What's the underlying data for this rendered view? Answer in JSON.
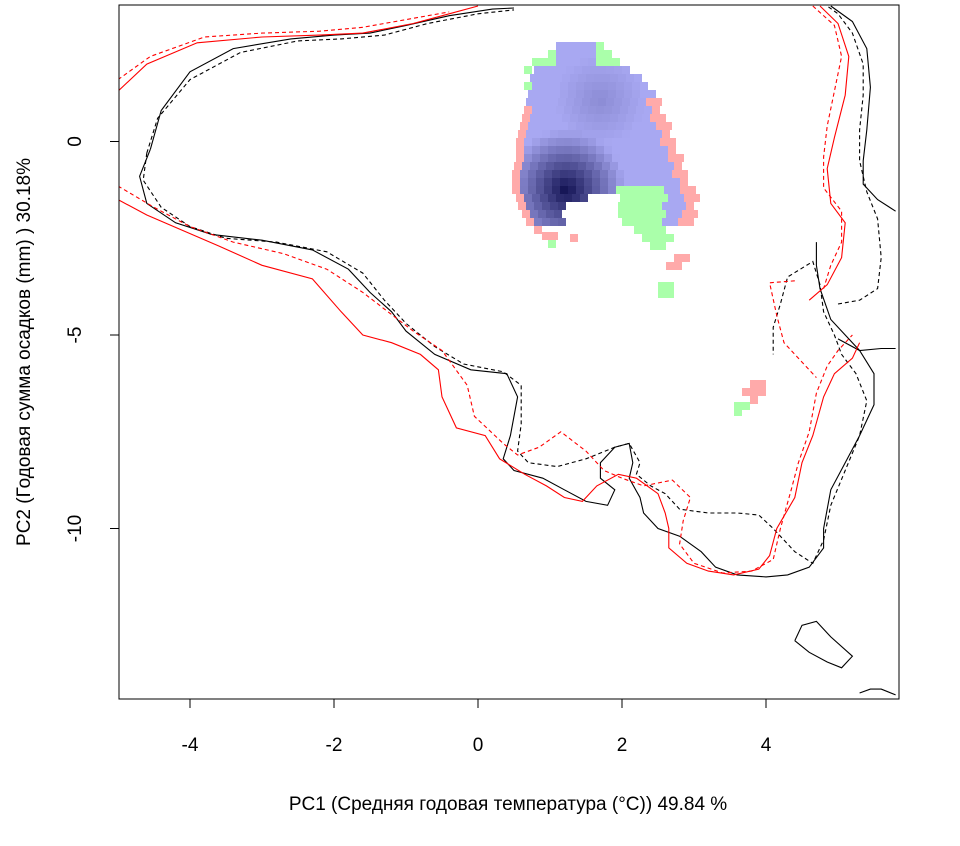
{
  "chart_data": {
    "type": "heatmap",
    "xlabel": "PC1 (Средняя годовая температура (°C)) 49.84 %",
    "ylabel": "PC2 (Годовая сумма осадков  (mm) ) 30.18%",
    "xlim": [
      -5.0,
      5.8
    ],
    "ylim": [
      -14.4,
      3.5
    ],
    "x_ticks": [
      -4,
      -2,
      0,
      2,
      4
    ],
    "y_ticks": [
      0,
      -5,
      -10
    ],
    "x_tick_labels": [
      "-4",
      "-2",
      "0",
      "2",
      "4"
    ],
    "y_tick_labels": [
      "0",
      "-5",
      "-10"
    ],
    "grid": false,
    "colors": {
      "overlap_ramp_light": "#a8a8f2",
      "overlap_ramp_dark": "#0a0a4a",
      "only_red_cells": "#ffaaaa",
      "only_green_cells": "#aaffaa",
      "contour_black": "#000000",
      "contour_red": "#ff0000"
    },
    "density_peak": [
      1.22,
      -1.25
    ],
    "contours": [
      {
        "color": "#000000",
        "style": "solid",
        "points": [
          [
            -4.55,
            -0.2
          ],
          [
            -4.4,
            0.8
          ],
          [
            -4.0,
            1.8
          ],
          [
            -3.4,
            2.4
          ],
          [
            -2.6,
            2.65
          ],
          [
            -2.0,
            2.75
          ],
          [
            -1.5,
            2.8
          ],
          [
            -1.0,
            3.0
          ],
          [
            -0.4,
            3.25
          ],
          [
            0.2,
            3.42
          ],
          [
            0.5,
            3.45
          ]
        ]
      },
      {
        "color": "#000000",
        "style": "solid",
        "points": [
          [
            -4.55,
            -0.2
          ],
          [
            -4.7,
            -0.9
          ],
          [
            -4.6,
            -1.6
          ],
          [
            -4.2,
            -2.1
          ],
          [
            -3.7,
            -2.4
          ],
          [
            -3.0,
            -2.55
          ],
          [
            -2.3,
            -2.8
          ],
          [
            -1.8,
            -3.3
          ],
          [
            -1.5,
            -3.9
          ],
          [
            -1.2,
            -4.4
          ],
          [
            -1.0,
            -4.9
          ],
          [
            -0.6,
            -5.5
          ],
          [
            -0.1,
            -5.9
          ],
          [
            0.4,
            -6.0
          ],
          [
            0.55,
            -6.6
          ],
          [
            0.45,
            -7.6
          ],
          [
            0.35,
            -8.2
          ],
          [
            0.5,
            -8.5
          ],
          [
            0.9,
            -8.7
          ],
          [
            1.2,
            -9.0
          ],
          [
            1.5,
            -9.3
          ],
          [
            1.8,
            -9.4
          ],
          [
            1.9,
            -9.0
          ],
          [
            1.7,
            -8.7
          ],
          [
            1.7,
            -8.3
          ],
          [
            1.9,
            -7.9
          ],
          [
            2.1,
            -7.8
          ],
          [
            2.15,
            -8.3
          ],
          [
            2.1,
            -8.7
          ],
          [
            2.25,
            -9.2
          ],
          [
            2.3,
            -9.6
          ],
          [
            2.5,
            -10.0
          ],
          [
            2.8,
            -10.2
          ],
          [
            3.1,
            -10.6
          ],
          [
            3.3,
            -11.0
          ],
          [
            3.6,
            -11.2
          ],
          [
            4.0,
            -11.25
          ],
          [
            4.3,
            -11.2
          ],
          [
            4.6,
            -11.0
          ],
          [
            4.8,
            -10.5
          ],
          [
            4.8,
            -10.0
          ],
          [
            4.9,
            -9.0
          ],
          [
            5.1,
            -8.3
          ],
          [
            5.3,
            -7.6
          ],
          [
            5.5,
            -6.8
          ],
          [
            5.5,
            -6.0
          ],
          [
            5.3,
            -5.4
          ],
          [
            5.1,
            -5.0
          ],
          [
            4.9,
            -4.6
          ],
          [
            4.75,
            -3.8
          ],
          [
            4.7,
            -3.2
          ],
          [
            4.7,
            -2.6
          ]
        ]
      },
      {
        "color": "#000000",
        "style": "solid",
        "points": [
          [
            5.0,
            -5.1
          ],
          [
            5.3,
            -5.4
          ],
          [
            5.6,
            -5.35
          ],
          [
            5.8,
            -5.35
          ]
        ]
      },
      {
        "color": "#000000",
        "style": "solid",
        "points": [
          [
            4.4,
            -12.9
          ],
          [
            4.5,
            -12.5
          ],
          [
            4.7,
            -12.4
          ],
          [
            4.9,
            -12.8
          ],
          [
            5.2,
            -13.3
          ],
          [
            5.05,
            -13.6
          ],
          [
            4.85,
            -13.45
          ],
          [
            4.6,
            -13.2
          ],
          [
            4.4,
            -12.9
          ]
        ]
      },
      {
        "color": "#000000",
        "style": "solid",
        "points": [
          [
            5.3,
            -14.25
          ],
          [
            5.45,
            -14.15
          ],
          [
            5.6,
            -14.15
          ],
          [
            5.8,
            -14.3
          ]
        ]
      },
      {
        "color": "#000000",
        "style": "solid",
        "points": [
          [
            4.9,
            3.5
          ],
          [
            5.2,
            3.1
          ],
          [
            5.4,
            2.4
          ],
          [
            5.45,
            1.4
          ],
          [
            5.4,
            0.3
          ],
          [
            5.35,
            -0.5
          ],
          [
            5.35,
            -1.1
          ],
          [
            5.55,
            -1.5
          ],
          [
            5.8,
            -1.8
          ]
        ]
      },
      {
        "color": "#000000",
        "style": "dashed",
        "points": [
          [
            -4.6,
            -0.3
          ],
          [
            -4.45,
            0.6
          ],
          [
            -4.0,
            1.6
          ],
          [
            -3.3,
            2.3
          ],
          [
            -2.5,
            2.6
          ],
          [
            -1.9,
            2.65
          ],
          [
            -1.3,
            2.75
          ],
          [
            -0.7,
            3.05
          ],
          [
            0.0,
            3.3
          ],
          [
            0.5,
            3.4
          ]
        ]
      },
      {
        "color": "#000000",
        "style": "dashed",
        "points": [
          [
            -4.6,
            -0.3
          ],
          [
            -4.65,
            -1.0
          ],
          [
            -4.4,
            -1.7
          ],
          [
            -4.0,
            -2.2
          ],
          [
            -3.5,
            -2.5
          ],
          [
            -2.8,
            -2.6
          ],
          [
            -2.1,
            -2.85
          ],
          [
            -1.6,
            -3.4
          ],
          [
            -1.3,
            -4.1
          ],
          [
            -1.0,
            -4.7
          ],
          [
            -0.6,
            -5.3
          ],
          [
            -0.2,
            -5.75
          ],
          [
            0.35,
            -5.95
          ],
          [
            0.6,
            -6.3
          ],
          [
            0.6,
            -7.3
          ],
          [
            0.55,
            -8.0
          ],
          [
            0.7,
            -8.3
          ],
          [
            1.1,
            -8.4
          ],
          [
            1.5,
            -8.2
          ],
          [
            1.9,
            -7.9
          ],
          [
            2.1,
            -7.8
          ],
          [
            2.25,
            -8.3
          ],
          [
            2.2,
            -8.6
          ],
          [
            2.4,
            -8.9
          ],
          [
            2.6,
            -9.1
          ],
          [
            2.8,
            -9.5
          ],
          [
            3.2,
            -9.6
          ],
          [
            3.6,
            -9.6
          ],
          [
            3.9,
            -9.65
          ],
          [
            4.1,
            -10.0
          ],
          [
            4.4,
            -10.6
          ],
          [
            4.65,
            -10.9
          ],
          [
            4.8,
            -10.3
          ],
          [
            4.9,
            -9.4
          ],
          [
            5.1,
            -8.5
          ],
          [
            5.3,
            -7.6
          ],
          [
            5.4,
            -6.7
          ],
          [
            5.25,
            -6.0
          ],
          [
            5.05,
            -5.5
          ],
          [
            4.95,
            -5.0
          ],
          [
            4.8,
            -4.4
          ],
          [
            4.75,
            -3.7
          ],
          [
            4.65,
            -3.1
          ],
          [
            4.3,
            -3.5
          ],
          [
            4.2,
            -4.2
          ],
          [
            4.1,
            -4.8
          ],
          [
            4.1,
            -5.5
          ]
        ]
      },
      {
        "color": "#000000",
        "style": "dashed",
        "points": [
          [
            5.0,
            -4.2
          ],
          [
            5.3,
            -4.1
          ],
          [
            5.55,
            -3.8
          ],
          [
            5.6,
            -3.0
          ],
          [
            5.55,
            -2.0
          ],
          [
            5.4,
            -1.3
          ],
          [
            5.3,
            -0.5
          ],
          [
            5.3,
            0.3
          ],
          [
            5.35,
            1.2
          ],
          [
            5.35,
            2.0
          ],
          [
            5.2,
            2.8
          ],
          [
            5.0,
            3.3
          ],
          [
            4.85,
            3.5
          ]
        ]
      },
      {
        "color": "#ff0000",
        "style": "solid",
        "points": [
          [
            -5.0,
            1.3
          ],
          [
            -4.6,
            2.0
          ],
          [
            -3.9,
            2.55
          ],
          [
            -3.0,
            2.7
          ],
          [
            -2.2,
            2.75
          ],
          [
            -1.6,
            2.8
          ],
          [
            -0.9,
            3.05
          ],
          [
            -0.4,
            3.3
          ],
          [
            0.0,
            3.5
          ]
        ]
      },
      {
        "color": "#ff0000",
        "style": "solid",
        "points": [
          [
            -5.0,
            -1.5
          ],
          [
            -4.6,
            -1.9
          ],
          [
            -4.1,
            -2.3
          ],
          [
            -3.6,
            -2.7
          ],
          [
            -3.0,
            -3.2
          ],
          [
            -2.3,
            -3.55
          ],
          [
            -1.9,
            -4.4
          ],
          [
            -1.6,
            -5.0
          ],
          [
            -1.2,
            -5.2
          ],
          [
            -0.8,
            -5.5
          ],
          [
            -0.55,
            -5.9
          ],
          [
            -0.5,
            -6.6
          ],
          [
            -0.3,
            -7.4
          ],
          [
            0.1,
            -7.6
          ],
          [
            0.3,
            -8.2
          ],
          [
            0.65,
            -8.6
          ],
          [
            0.95,
            -8.9
          ],
          [
            1.2,
            -9.2
          ],
          [
            1.45,
            -9.3
          ],
          [
            1.65,
            -8.9
          ],
          [
            1.95,
            -8.6
          ],
          [
            2.2,
            -8.7
          ],
          [
            2.5,
            -9.1
          ],
          [
            2.6,
            -9.6
          ],
          [
            2.65,
            -10.0
          ],
          [
            2.65,
            -10.5
          ],
          [
            2.9,
            -10.9
          ],
          [
            3.2,
            -11.1
          ],
          [
            3.55,
            -11.2
          ],
          [
            3.9,
            -11.05
          ],
          [
            4.05,
            -10.7
          ],
          [
            4.15,
            -10.0
          ],
          [
            4.4,
            -9.2
          ],
          [
            4.5,
            -8.3
          ],
          [
            4.65,
            -7.6
          ],
          [
            4.8,
            -6.6
          ],
          [
            4.95,
            -6.0
          ],
          [
            5.2,
            -5.6
          ],
          [
            5.3,
            -5.2
          ]
        ]
      },
      {
        "color": "#ff0000",
        "style": "solid",
        "points": [
          [
            4.75,
            3.5
          ],
          [
            5.0,
            3.05
          ],
          [
            5.15,
            2.2
          ],
          [
            5.1,
            1.2
          ],
          [
            4.95,
            0.1
          ],
          [
            4.85,
            -0.7
          ],
          [
            4.9,
            -1.6
          ],
          [
            5.1,
            -2.1
          ],
          [
            5.05,
            -3.0
          ],
          [
            4.85,
            -3.7
          ],
          [
            4.6,
            -4.1
          ]
        ]
      },
      {
        "color": "#ff0000",
        "style": "dashed",
        "points": [
          [
            -5.0,
            1.6
          ],
          [
            -4.55,
            2.2
          ],
          [
            -3.8,
            2.7
          ],
          [
            -3.0,
            2.8
          ],
          [
            -2.2,
            2.85
          ],
          [
            -1.6,
            2.95
          ],
          [
            -1.0,
            3.15
          ],
          [
            -0.4,
            3.35
          ]
        ]
      },
      {
        "color": "#ff0000",
        "style": "dashed",
        "points": [
          [
            -5.0,
            -1.15
          ],
          [
            -4.5,
            -1.7
          ],
          [
            -4.0,
            -2.2
          ],
          [
            -3.4,
            -2.6
          ],
          [
            -2.7,
            -2.9
          ],
          [
            -2.1,
            -3.3
          ],
          [
            -1.6,
            -3.9
          ],
          [
            -1.25,
            -4.4
          ],
          [
            -0.9,
            -4.9
          ],
          [
            -0.5,
            -5.4
          ],
          [
            -0.15,
            -6.3
          ],
          [
            -0.05,
            -7.1
          ],
          [
            0.35,
            -7.8
          ],
          [
            0.55,
            -8.1
          ],
          [
            0.85,
            -7.9
          ],
          [
            1.15,
            -7.5
          ],
          [
            1.5,
            -8.0
          ],
          [
            1.75,
            -8.5
          ],
          [
            2.0,
            -8.7
          ],
          [
            2.3,
            -8.9
          ],
          [
            2.7,
            -8.75
          ],
          [
            2.95,
            -9.2
          ],
          [
            2.85,
            -9.8
          ],
          [
            2.8,
            -10.4
          ],
          [
            3.0,
            -10.9
          ],
          [
            3.4,
            -11.15
          ],
          [
            3.8,
            -11.1
          ],
          [
            4.1,
            -10.8
          ],
          [
            4.2,
            -10.0
          ],
          [
            4.35,
            -9.0
          ],
          [
            4.45,
            -8.3
          ],
          [
            4.6,
            -7.5
          ],
          [
            4.7,
            -6.5
          ],
          [
            4.85,
            -5.8
          ],
          [
            5.0,
            -5.4
          ],
          [
            5.2,
            -5.0
          ]
        ]
      },
      {
        "color": "#ff0000",
        "style": "dashed",
        "points": [
          [
            4.4,
            -3.6
          ],
          [
            4.05,
            -3.65
          ],
          [
            4.15,
            -4.5
          ],
          [
            4.25,
            -5.2
          ],
          [
            4.5,
            -5.7
          ],
          [
            4.7,
            -6.1
          ]
        ]
      },
      {
        "color": "#ff0000",
        "style": "dashed",
        "points": [
          [
            4.65,
            3.5
          ],
          [
            4.95,
            3.0
          ],
          [
            5.05,
            2.2
          ],
          [
            4.95,
            1.3
          ],
          [
            4.85,
            0.4
          ],
          [
            4.8,
            -0.4
          ],
          [
            4.8,
            -1.2
          ],
          [
            5.05,
            -1.8
          ],
          [
            5.05,
            -2.6
          ],
          [
            4.9,
            -3.2
          ],
          [
            4.8,
            -3.8
          ]
        ]
      }
    ]
  }
}
